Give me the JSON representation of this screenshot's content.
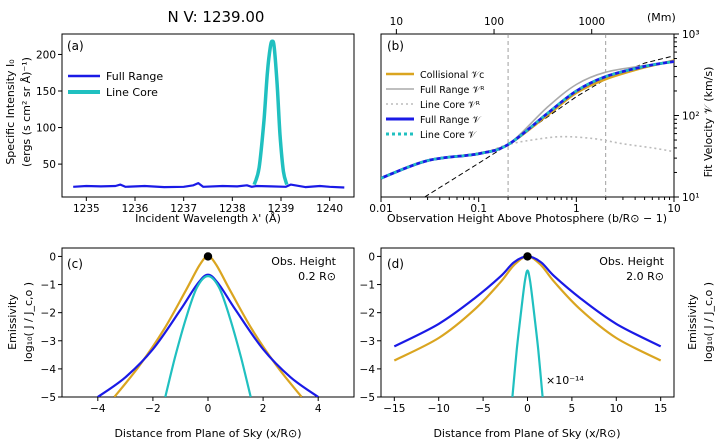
{
  "figure_title": "N V: 1239.00",
  "colors": {
    "collisional": "#DAA520",
    "full_range": "#1a1aE6",
    "line_core": "#20C0C0",
    "gray": "#aaaaaa",
    "gray_dotted": "#bbbbbb",
    "black": "#000000"
  },
  "chart_data": [
    {
      "panel": "(a)",
      "type": "line",
      "xlabel": "Incident Wavelength λ' (Å)",
      "ylabel_line1": "Specific Intensity I₀",
      "ylabel_line2": "(ergs (s cm² sr Å)⁻¹)",
      "xlim": [
        1234.5,
        1240.5
      ],
      "ylim": [
        5,
        228
      ],
      "xticks": [
        1235,
        1236,
        1237,
        1238,
        1239,
        1240
      ],
      "yticks": [
        50,
        100,
        150,
        200
      ],
      "legend": [
        "Full Range",
        "Line Core"
      ],
      "legend_position": "upper-left",
      "series": [
        {
          "name": "Full Range",
          "x": [
            1234.73,
            1235.0,
            1235.3,
            1235.6,
            1235.7,
            1235.8,
            1236.2,
            1236.6,
            1237.0,
            1237.2,
            1237.3,
            1237.4,
            1237.8,
            1238.1,
            1238.3,
            1238.4,
            1238.5,
            1238.8,
            1239.1,
            1239.2,
            1239.5,
            1239.8,
            1240.0,
            1240.3
          ],
          "y": [
            19,
            20,
            19.5,
            20,
            22,
            19,
            20,
            18.5,
            19,
            21,
            24,
            19,
            20,
            19.5,
            21,
            19,
            20,
            19.5,
            19,
            22,
            18.5,
            20,
            19,
            18
          ]
        },
        {
          "name": "Line Core",
          "x": [
            1238.45,
            1238.55,
            1238.65,
            1238.72,
            1238.78,
            1238.82,
            1238.86,
            1238.92,
            1238.98,
            1239.05,
            1239.12
          ],
          "y": [
            22,
            45,
            110,
            175,
            210,
            218,
            210,
            160,
            90,
            40,
            22
          ]
        }
      ]
    },
    {
      "panel": "(b)",
      "type": "line",
      "xscale": "log",
      "yscale": "log",
      "xlabel": "Observation Height Above Photosphere (b/R⊙ − 1)",
      "ylabel": "Fit Velocity 𝒱 (km/s)",
      "top_xlabel": "(Mm)",
      "xlim": [
        0.01,
        10
      ],
      "ylim": [
        10,
        1000
      ],
      "xtick_labels": [
        "0.01",
        "0.1",
        "1",
        "10"
      ],
      "ytick_labels": [
        "10¹",
        "10²",
        "10³"
      ],
      "top_tick_labels": [
        "10",
        "100",
        "1000"
      ],
      "vlines": [
        0.2,
        2.0
      ],
      "legend": [
        "Collisional 𝒱ᴄ",
        "Full Range 𝒱ᴿ",
        "Line Core 𝒱ᴿ",
        "Full Range 𝒱",
        "Line Core 𝒱"
      ],
      "series": [
        {
          "name": "Collisional V_C",
          "x": [
            0.01,
            0.03,
            0.1,
            0.2,
            0.5,
            1,
            2,
            5,
            10
          ],
          "y": [
            17,
            28,
            34,
            44,
            100,
            190,
            280,
            390,
            470
          ]
        },
        {
          "name": "Full Range V_R",
          "x": [
            0.01,
            0.03,
            0.1,
            0.2,
            0.5,
            1,
            2,
            5,
            10
          ],
          "y": [
            17,
            28,
            34,
            44,
            125,
            240,
            340,
            410,
            450
          ]
        },
        {
          "name": "Line Core V_R",
          "x": [
            0.01,
            0.03,
            0.1,
            0.2,
            0.35,
            0.7,
            1.5,
            3,
            6,
            10
          ],
          "y": [
            17,
            28,
            34,
            44,
            50,
            55,
            52,
            45,
            40,
            36
          ]
        },
        {
          "name": "Full Range V",
          "x": [
            0.01,
            0.03,
            0.1,
            0.2,
            0.5,
            1,
            2,
            5,
            10
          ],
          "y": [
            17,
            28,
            34,
            44,
            105,
            200,
            300,
            400,
            460
          ]
        },
        {
          "name": "Line Core V",
          "x": [
            0.01,
            0.03,
            0.1,
            0.2,
            0.5,
            1,
            2,
            5,
            10
          ],
          "y": [
            17,
            28,
            34,
            44,
            105,
            200,
            300,
            400,
            460
          ]
        },
        {
          "name": "Power-law guide",
          "x": [
            0.028,
            0.1,
            0.2,
            0.5,
            1,
            2,
            5,
            10
          ],
          "y": [
            10,
            26,
            44,
            95,
            170,
            280,
            440,
            540
          ]
        }
      ]
    },
    {
      "panel": "(c)",
      "type": "line",
      "xlabel": "Distance from Plane of Sky (x/R⊙)",
      "ylabel_line1": "Emissivity",
      "ylabel_line2": "log₁₀( J / J_c,o )",
      "annotation_line1": "Obs. Height",
      "annotation_line2": "0.2 R⊙",
      "xlim": [
        -5.3,
        5.3
      ],
      "ylim": [
        -5,
        0.3
      ],
      "xticks": [
        -4,
        -2,
        0,
        2,
        4
      ],
      "yticks": [
        -5,
        -4,
        -3,
        -2,
        -1,
        0
      ],
      "marker": {
        "x": 0,
        "y": 0
      },
      "series": [
        {
          "name": "Collisional",
          "x": [
            -3.4,
            -2.5,
            -1.6,
            -0.8,
            -0.3,
            0,
            0.3,
            0.8,
            1.6,
            2.5,
            3.4
          ],
          "y": [
            -5,
            -3.9,
            -2.6,
            -1.2,
            -0.3,
            0,
            -0.3,
            -1.2,
            -2.6,
            -3.9,
            -5
          ]
        },
        {
          "name": "Full Range",
          "x": [
            -4,
            -3,
            -2,
            -1,
            -0.4,
            0,
            0.4,
            1,
            2,
            3,
            4
          ],
          "y": [
            -5,
            -4.3,
            -3.3,
            -1.9,
            -1.0,
            -0.65,
            -1.0,
            -1.9,
            -3.3,
            -4.3,
            -5
          ]
        },
        {
          "name": "Line Core",
          "x": [
            -1.55,
            -1.2,
            -0.8,
            -0.4,
            0,
            0.4,
            0.8,
            1.2,
            1.55
          ],
          "y": [
            -5,
            -3.6,
            -2.2,
            -1.1,
            -0.7,
            -1.1,
            -2.2,
            -3.6,
            -5
          ]
        }
      ]
    },
    {
      "panel": "(d)",
      "type": "line",
      "xlabel": "Distance from Plane of Sky (x/R⊙)",
      "ylabel_line1": "Emissivity",
      "ylabel_line2": "log₁₀( J / J_c,o )",
      "annotation_line1": "Obs. Height",
      "annotation_line2": "2.0 R⊙",
      "scale_note": "×10⁻¹⁴",
      "xlim": [
        -16.5,
        16.5
      ],
      "ylim": [
        -5,
        0.3
      ],
      "xticks": [
        -15,
        -10,
        -5,
        0,
        5,
        10,
        15
      ],
      "yticks": [
        -5,
        -4,
        -3,
        -2,
        -1,
        0
      ],
      "marker": {
        "x": 0,
        "y": 0
      },
      "series": [
        {
          "name": "Collisional",
          "x": [
            -15,
            -10,
            -6,
            -3,
            -1.5,
            0,
            1.5,
            3,
            6,
            10,
            15
          ],
          "y": [
            -3.7,
            -2.9,
            -1.9,
            -0.9,
            -0.3,
            0,
            -0.3,
            -0.9,
            -1.9,
            -2.9,
            -3.7
          ]
        },
        {
          "name": "Full Range",
          "x": [
            -15,
            -10,
            -6,
            -3,
            -1.5,
            0,
            1.5,
            3,
            6,
            10,
            15
          ],
          "y": [
            -3.2,
            -2.4,
            -1.5,
            -0.7,
            -0.2,
            0,
            -0.2,
            -0.7,
            -1.5,
            -2.4,
            -3.2
          ]
        },
        {
          "name": "Line Core",
          "x": [
            -1.7,
            -1.2,
            -0.7,
            -0.3,
            0,
            0.3,
            0.7,
            1.2,
            1.7
          ],
          "y": [
            -5,
            -3.3,
            -1.9,
            -0.9,
            -0.5,
            -0.9,
            -1.9,
            -3.3,
            -5
          ]
        }
      ]
    }
  ]
}
